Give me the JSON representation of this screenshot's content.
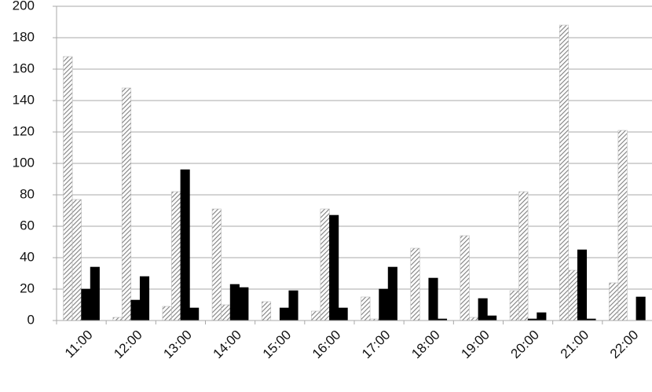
{
  "chart_data": {
    "type": "bar",
    "categories": [
      "11:00",
      "12:00",
      "13:00",
      "14:00",
      "15:00",
      "16:00",
      "17:00",
      "18:00",
      "19:00",
      "20:00",
      "21:00",
      "22:00"
    ],
    "series": [
      {
        "color": "#7f7f7f",
        "pattern": "hatch",
        "values": [
          168,
          2,
          9,
          71,
          12,
          6,
          15,
          46,
          54,
          19,
          188,
          24
        ]
      },
      {
        "color": "#7f7f7f",
        "pattern": "hatch",
        "values": [
          77,
          148,
          82,
          10,
          0,
          71,
          1,
          0,
          2,
          82,
          32,
          121
        ]
      },
      {
        "color": "#000000",
        "pattern": "solid",
        "values": [
          20,
          13,
          96,
          23,
          8,
          67,
          20,
          27,
          14,
          1,
          45,
          0
        ]
      },
      {
        "color": "#000000",
        "pattern": "solid",
        "values": [
          34,
          28,
          8,
          21,
          19,
          8,
          34,
          1,
          3,
          5,
          1,
          15
        ]
      }
    ],
    "ylim": [
      0,
      200
    ],
    "yticks": [
      0,
      20,
      40,
      60,
      80,
      100,
      120,
      140,
      160,
      180,
      200
    ],
    "grid": true
  }
}
